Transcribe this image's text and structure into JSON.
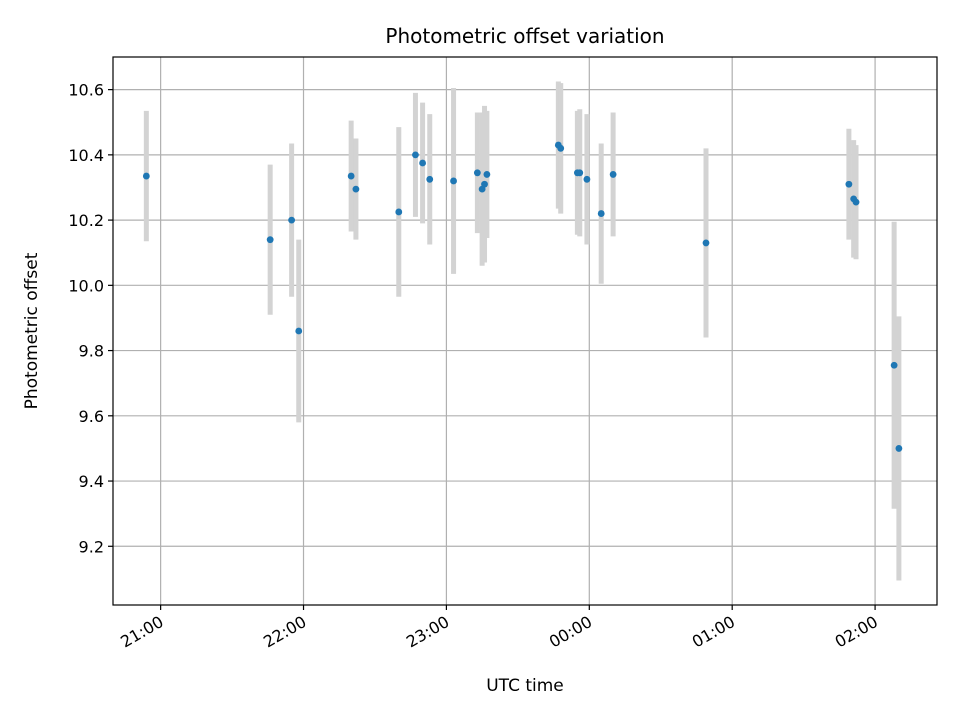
{
  "chart_data": {
    "type": "scatter",
    "title": "Photometric offset variation",
    "xlabel": "UTC time",
    "ylabel": "Photometric offset",
    "xlim": [
      "20:40",
      "02:26"
    ],
    "ylim": [
      9.02,
      10.7
    ],
    "xticks": [
      "21:00",
      "22:00",
      "23:00",
      "00:00",
      "01:00",
      "02:00"
    ],
    "yticks": [
      9.2,
      9.4,
      9.6,
      9.8,
      10.0,
      10.2,
      10.4,
      10.6
    ],
    "grid": true,
    "marker_color": "#1f77b4",
    "errorbar_color": "#d3d3d3",
    "x": [
      "20:54",
      "21:46",
      "21:55",
      "21:58",
      "22:20",
      "22:22",
      "22:40",
      "22:47",
      "22:50",
      "22:53",
      "23:03",
      "23:13",
      "23:15",
      "23:16",
      "23:17",
      "23:47",
      "23:48",
      "23:55",
      "23:56",
      "23:59",
      "00:05",
      "00:10",
      "00:49",
      "01:49",
      "01:51",
      "01:52",
      "02:08",
      "02:10"
    ],
    "y": [
      10.335,
      10.14,
      10.2,
      9.86,
      10.335,
      10.295,
      10.225,
      10.4,
      10.375,
      10.325,
      10.32,
      10.345,
      10.295,
      10.31,
      10.34,
      10.43,
      10.42,
      10.345,
      10.345,
      10.325,
      10.22,
      10.34,
      10.13,
      10.31,
      10.265,
      10.255,
      9.755,
      9.5
    ],
    "yerr": [
      0.2,
      0.23,
      0.235,
      0.28,
      0.17,
      0.155,
      0.26,
      0.19,
      0.185,
      0.2,
      0.285,
      0.185,
      0.235,
      0.24,
      0.195,
      0.195,
      0.2,
      0.19,
      0.195,
      0.2,
      0.215,
      0.19,
      0.29,
      0.17,
      0.18,
      0.175,
      0.44,
      0.405
    ]
  }
}
